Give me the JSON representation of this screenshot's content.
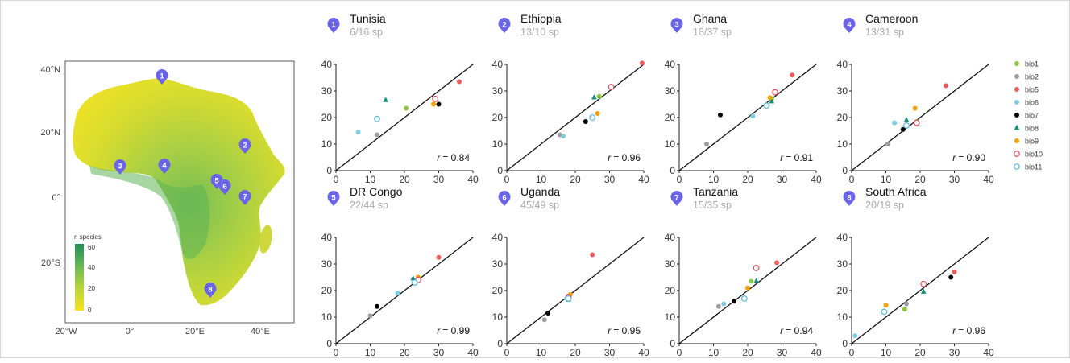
{
  "map": {
    "lat_ticks": [
      "40°N",
      "20°N",
      "0°",
      "20°S"
    ],
    "lon_ticks": [
      "20°W",
      "0°",
      "20°E",
      "40°E"
    ],
    "legend": {
      "title": "n species",
      "ticks": [
        "60",
        "40",
        "20",
        "0"
      ],
      "range": [
        0,
        60
      ]
    },
    "pins": [
      {
        "label": "1",
        "country": "Tunisia"
      },
      {
        "label": "2",
        "country": "Ethiopia"
      },
      {
        "label": "3",
        "country": "Ghana"
      },
      {
        "label": "4",
        "country": "Cameroon"
      },
      {
        "label": "5",
        "country": "DR Congo"
      },
      {
        "label": "6",
        "country": "Uganda"
      },
      {
        "label": "7",
        "country": "Tanzania"
      },
      {
        "label": "8",
        "country": "South Africa"
      }
    ],
    "colors": {
      "low": "#f2e42a",
      "mid": "#8cc54a",
      "high": "#2e9a5a",
      "pin": "#6a64e8"
    }
  },
  "legend": {
    "items": [
      {
        "key": "bio1",
        "color": "#8dc63f",
        "shape": "circle"
      },
      {
        "key": "bio2",
        "color": "#9e9e9e",
        "shape": "circle"
      },
      {
        "key": "bio5",
        "color": "#ef5a5a",
        "shape": "circle"
      },
      {
        "key": "bio6",
        "color": "#7fcbe0",
        "shape": "circle"
      },
      {
        "key": "bio7",
        "color": "#000000",
        "shape": "circle"
      },
      {
        "key": "bio8",
        "color": "#17907a",
        "shape": "diamond"
      },
      {
        "key": "bio9",
        "color": "#f5a000",
        "shape": "circle"
      },
      {
        "key": "bio10",
        "color": "#e8495a",
        "shape": "open-circle"
      },
      {
        "key": "bio11",
        "color": "#59b8dc",
        "shape": "open-circle"
      }
    ]
  },
  "chart_data": [
    {
      "type": "scatter",
      "num": "1",
      "title": "Tunisia",
      "subtitle": "6/16 sp",
      "r_label": "r",
      "r_value": "= 0.84",
      "xlim": [
        0,
        40
      ],
      "ylim": [
        0,
        40
      ],
      "ticks": [
        "0",
        "10",
        "20",
        "30",
        "40"
      ],
      "points": [
        {
          "var": "bio1",
          "x": 20.5,
          "y": 23.5
        },
        {
          "var": "bio2",
          "x": 12,
          "y": 13.5
        },
        {
          "var": "bio5",
          "x": 36,
          "y": 33.5
        },
        {
          "var": "bio6",
          "x": 6.5,
          "y": 14.5
        },
        {
          "var": "bio7",
          "x": 30,
          "y": 25
        },
        {
          "var": "bio8",
          "x": 14.5,
          "y": 26.5
        },
        {
          "var": "bio9",
          "x": 28.5,
          "y": 25
        },
        {
          "var": "bio10",
          "x": 29,
          "y": 27
        },
        {
          "var": "bio11",
          "x": 12,
          "y": 19.5
        }
      ]
    },
    {
      "type": "scatter",
      "num": "2",
      "title": "Ethiopia",
      "subtitle": "13/10 sp",
      "r_label": "r",
      "r_value": "= 0.96",
      "xlim": [
        0,
        40
      ],
      "ylim": [
        0,
        40
      ],
      "ticks": [
        "0",
        "10",
        "20",
        "30",
        "40"
      ],
      "points": [
        {
          "var": "bio1",
          "x": 27,
          "y": 28
        },
        {
          "var": "bio2",
          "x": 15.5,
          "y": 13.5
        },
        {
          "var": "bio5",
          "x": 39.5,
          "y": 40.5
        },
        {
          "var": "bio6",
          "x": 16.5,
          "y": 13
        },
        {
          "var": "bio7",
          "x": 23,
          "y": 18.5
        },
        {
          "var": "bio8",
          "x": 25.5,
          "y": 27.5
        },
        {
          "var": "bio9",
          "x": 26.5,
          "y": 21.5
        },
        {
          "var": "bio10",
          "x": 30.5,
          "y": 31.5
        },
        {
          "var": "bio11",
          "x": 25,
          "y": 20
        }
      ]
    },
    {
      "type": "scatter",
      "num": "3",
      "title": "Ghana",
      "subtitle": "18/37 sp",
      "r_label": "r",
      "r_value": "= 0.91",
      "xlim": [
        0,
        40
      ],
      "ylim": [
        0,
        40
      ],
      "ticks": [
        "0",
        "10",
        "20",
        "30",
        "40"
      ],
      "points": [
        {
          "var": "bio1",
          "x": 27,
          "y": 27
        },
        {
          "var": "bio2",
          "x": 8,
          "y": 10
        },
        {
          "var": "bio5",
          "x": 33,
          "y": 36
        },
        {
          "var": "bio6",
          "x": 21.5,
          "y": 20.5
        },
        {
          "var": "bio7",
          "x": 12,
          "y": 21
        },
        {
          "var": "bio8",
          "x": 27,
          "y": 26
        },
        {
          "var": "bio9",
          "x": 26.5,
          "y": 27.5
        },
        {
          "var": "bio10",
          "x": 28,
          "y": 29.5
        },
        {
          "var": "bio11",
          "x": 25.5,
          "y": 24.5
        }
      ]
    },
    {
      "type": "scatter",
      "num": "4",
      "title": "Cameroon",
      "subtitle": "13/31 sp",
      "r_label": "r",
      "r_value": "= 0.90",
      "xlim": [
        0,
        40
      ],
      "ylim": [
        0,
        40
      ],
      "ticks": [
        "0",
        "10",
        "20",
        "30",
        "40"
      ],
      "points": [
        {
          "var": "bio1",
          "x": 19,
          "y": 18.5
        },
        {
          "var": "bio2",
          "x": 10.5,
          "y": 10
        },
        {
          "var": "bio5",
          "x": 27.5,
          "y": 32
        },
        {
          "var": "bio6",
          "x": 12.5,
          "y": 18
        },
        {
          "var": "bio7",
          "x": 15,
          "y": 15.5
        },
        {
          "var": "bio8",
          "x": 16,
          "y": 19
        },
        {
          "var": "bio9",
          "x": 18.5,
          "y": 23.5
        },
        {
          "var": "bio10",
          "x": 19,
          "y": 18
        },
        {
          "var": "bio11",
          "x": 16,
          "y": 17
        }
      ]
    },
    {
      "type": "scatter",
      "num": "5",
      "title": "DR Congo",
      "subtitle": "22/44 sp",
      "r_label": "r",
      "r_value": "= 0.99",
      "xlim": [
        0,
        40
      ],
      "ylim": [
        0,
        40
      ],
      "ticks": [
        "0",
        "10",
        "20",
        "30",
        "40"
      ],
      "points": [
        {
          "var": "bio1",
          "x": 23.5,
          "y": 23.5
        },
        {
          "var": "bio2",
          "x": 10,
          "y": 10.5
        },
        {
          "var": "bio5",
          "x": 30,
          "y": 32.5
        },
        {
          "var": "bio6",
          "x": 18,
          "y": 19
        },
        {
          "var": "bio7",
          "x": 12,
          "y": 14
        },
        {
          "var": "bio8",
          "x": 22.5,
          "y": 24.5
        },
        {
          "var": "bio9",
          "x": 24,
          "y": 25
        },
        {
          "var": "bio10",
          "x": 24,
          "y": 24
        },
        {
          "var": "bio11",
          "x": 23,
          "y": 23
        }
      ]
    },
    {
      "type": "scatter",
      "num": "6",
      "title": "Uganda",
      "subtitle": "45/49 sp",
      "r_label": "r",
      "r_value": "= 0.95",
      "xlim": [
        0,
        40
      ],
      "ylim": [
        0,
        40
      ],
      "ticks": [
        "0",
        "10",
        "20",
        "30",
        "40"
      ],
      "points": [
        {
          "var": "bio1",
          "x": 18,
          "y": 18
        },
        {
          "var": "bio2",
          "x": 11,
          "y": 9
        },
        {
          "var": "bio5",
          "x": 25,
          "y": 33.5
        },
        {
          "var": "bio6",
          "x": 17.5,
          "y": 17
        },
        {
          "var": "bio7",
          "x": 12,
          "y": 11.5
        },
        {
          "var": "bio8",
          "x": 18,
          "y": 16.5
        },
        {
          "var": "bio9",
          "x": 18.5,
          "y": 18.5
        },
        {
          "var": "bio10",
          "x": 18,
          "y": 17.5
        },
        {
          "var": "bio11",
          "x": 18,
          "y": 17
        }
      ]
    },
    {
      "type": "scatter",
      "num": "7",
      "title": "Tanzania",
      "subtitle": "15/35 sp",
      "r_label": "r",
      "r_value": "= 0.94",
      "xlim": [
        0,
        40
      ],
      "ylim": [
        0,
        40
      ],
      "ticks": [
        "0",
        "10",
        "20",
        "30",
        "40"
      ],
      "points": [
        {
          "var": "bio1",
          "x": 21,
          "y": 23.5
        },
        {
          "var": "bio2",
          "x": 11.5,
          "y": 14
        },
        {
          "var": "bio5",
          "x": 28.5,
          "y": 30.5
        },
        {
          "var": "bio6",
          "x": 13,
          "y": 15
        },
        {
          "var": "bio7",
          "x": 16,
          "y": 16
        },
        {
          "var": "bio8",
          "x": 22.5,
          "y": 23.5
        },
        {
          "var": "bio9",
          "x": 20,
          "y": 21
        },
        {
          "var": "bio10",
          "x": 22.5,
          "y": 28.5
        },
        {
          "var": "bio11",
          "x": 19,
          "y": 17
        }
      ]
    },
    {
      "type": "scatter",
      "num": "8",
      "title": "South Africa",
      "subtitle": "20/19 sp",
      "r_label": "r",
      "r_value": "= 0.96",
      "xlim": [
        0,
        40
      ],
      "ylim": [
        0,
        40
      ],
      "ticks": [
        "0",
        "10",
        "20",
        "30",
        "40"
      ],
      "points": [
        {
          "var": "bio1",
          "x": 15.5,
          "y": 13
        },
        {
          "var": "bio2",
          "x": 16,
          "y": 15
        },
        {
          "var": "bio5",
          "x": 30,
          "y": 27
        },
        {
          "var": "bio6",
          "x": 1,
          "y": 3
        },
        {
          "var": "bio7",
          "x": 29,
          "y": 25
        },
        {
          "var": "bio8",
          "x": 21,
          "y": 19.5
        },
        {
          "var": "bio9",
          "x": 10,
          "y": 14.5
        },
        {
          "var": "bio10",
          "x": 21,
          "y": 22.5
        },
        {
          "var": "bio11",
          "x": 9.5,
          "y": 12
        }
      ]
    }
  ]
}
